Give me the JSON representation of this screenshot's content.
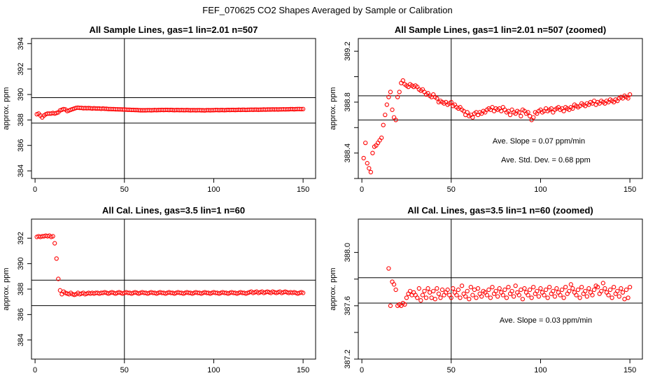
{
  "figure_title": "FEF_070625  CO2 Shapes Averaged by Sample or Calibration",
  "colors": {
    "points": "#ff0000",
    "lines": "#000000",
    "frame": "#000000"
  },
  "chart_data": [
    {
      "type": "scatter",
      "title": "All Sample Lines, gas=1 lin=2.01 n=507",
      "xlabel": "",
      "ylabel": "approx. ppm",
      "xlim": [
        -2,
        157
      ],
      "ylim": [
        387.9,
        389.45
      ],
      "xticks": [
        0,
        50,
        100,
        150
      ],
      "yticks": [
        388.4,
        388.8,
        389.2
      ],
      "ytick_labels": [
        "384",
        "388",
        "392"
      ],
      "ytick_values": [
        384,
        388,
        392,
        394,
        390,
        386
      ],
      "ytick_labels_all": [
        "384",
        "386",
        "388",
        "390",
        "392",
        "394"
      ],
      "yticks_all": [
        384,
        386,
        388,
        390,
        392,
        394
      ],
      "ylim_units": [
        383.4,
        394.4
      ],
      "vline": 50,
      "hlines": [
        387.75,
        389.75
      ],
      "annotations": [],
      "x_start": 1,
      "x_step": 1,
      "y": [
        388.45,
        388.5,
        388.35,
        388.2,
        388.35,
        388.45,
        388.5,
        388.5,
        388.5,
        388.55,
        388.5,
        388.55,
        388.6,
        388.75,
        388.8,
        388.85,
        388.82,
        388.7,
        388.75,
        388.8,
        388.85,
        388.9,
        388.95,
        388.97,
        388.95,
        388.95,
        388.92,
        388.93,
        388.92,
        388.93,
        388.92,
        388.9,
        388.92,
        388.9,
        388.9,
        388.9,
        388.88,
        388.9,
        388.88,
        388.88,
        388.86,
        388.86,
        388.85,
        388.85,
        388.84,
        388.84,
        388.83,
        388.83,
        388.82,
        388.82,
        388.81,
        388.8,
        388.8,
        388.79,
        388.79,
        388.78,
        388.78,
        388.77,
        388.76,
        388.76,
        388.76,
        388.76,
        388.77,
        388.77,
        388.76,
        388.77,
        388.78,
        388.77,
        388.78,
        388.78,
        388.79,
        388.78,
        388.79,
        388.79,
        388.78,
        388.79,
        388.78,
        388.77,
        388.78,
        388.78,
        388.77,
        388.78,
        388.77,
        388.77,
        388.78,
        388.77,
        388.76,
        388.77,
        388.77,
        388.76,
        388.77,
        388.77,
        388.76,
        388.76,
        388.75,
        388.77,
        388.77,
        388.76,
        388.77,
        388.77,
        388.78,
        388.78,
        388.77,
        388.78,
        388.78,
        388.77,
        388.78,
        388.79,
        388.78,
        388.79,
        388.79,
        388.78,
        388.79,
        388.8,
        388.79,
        388.8,
        388.8,
        388.79,
        388.8,
        388.8,
        388.81,
        388.8,
        388.81,
        388.81,
        388.8,
        388.81,
        388.81,
        388.82,
        388.81,
        388.82,
        388.82,
        388.82,
        388.83,
        388.82,
        388.83,
        388.82,
        388.83,
        388.83,
        388.84,
        388.83,
        388.84,
        388.84,
        388.85,
        388.85,
        388.84,
        388.85,
        388.86,
        388.86,
        388.85,
        388.86
      ]
    },
    {
      "type": "scatter",
      "title": "All Sample Lines, gas=1 lin=2.01 n=507 (zoomed)",
      "xlabel": "",
      "ylabel": "approx. ppm",
      "xlim": [
        -2,
        157
      ],
      "ylim": [
        388.2,
        389.3
      ],
      "xticks": [
        0,
        50,
        100,
        150
      ],
      "yticks_all": [
        388.2,
        388.4,
        388.6,
        388.8,
        389.0,
        389.2
      ],
      "ytick_labels_all": [
        "",
        "388.4",
        "",
        "388.8",
        "",
        "389.2"
      ],
      "vline": 50,
      "hlines": [
        388.66,
        388.85
      ],
      "annotations": [
        "Ave. Slope =  0.07  ppm/min",
        "Ave. Std. Dev. =  0.68  ppm"
      ],
      "x_start": 1,
      "x_step": 1,
      "y": [
        388.36,
        388.48,
        388.32,
        388.28,
        388.25,
        388.4,
        388.45,
        388.46,
        388.48,
        388.5,
        388.52,
        388.62,
        388.7,
        388.78,
        388.84,
        388.88,
        388.74,
        388.68,
        388.66,
        388.84,
        388.88,
        388.95,
        388.97,
        388.94,
        388.93,
        388.92,
        388.94,
        388.93,
        388.92,
        388.93,
        388.92,
        388.9,
        388.89,
        388.9,
        388.88,
        388.86,
        388.87,
        388.85,
        388.84,
        388.86,
        388.84,
        388.83,
        388.8,
        388.81,
        388.8,
        388.79,
        388.8,
        388.78,
        388.79,
        388.8,
        388.77,
        388.78,
        388.76,
        388.75,
        388.76,
        388.74,
        388.73,
        388.7,
        388.72,
        388.69,
        388.7,
        388.68,
        388.71,
        388.72,
        388.7,
        388.72,
        388.71,
        388.73,
        388.72,
        388.74,
        388.75,
        388.74,
        388.76,
        388.73,
        388.75,
        388.74,
        388.75,
        388.73,
        388.76,
        388.74,
        388.72,
        388.73,
        388.7,
        388.74,
        388.72,
        388.71,
        388.73,
        388.72,
        388.69,
        388.74,
        388.73,
        388.71,
        388.72,
        388.69,
        388.66,
        388.68,
        388.72,
        388.71,
        388.73,
        388.74,
        388.72,
        388.73,
        388.75,
        388.73,
        388.74,
        388.75,
        388.72,
        388.74,
        388.75,
        388.76,
        388.74,
        388.75,
        388.73,
        388.76,
        388.75,
        388.74,
        388.76,
        388.75,
        388.78,
        388.77,
        388.76,
        388.77,
        388.79,
        388.78,
        388.77,
        388.79,
        388.78,
        388.8,
        388.79,
        388.81,
        388.78,
        388.8,
        388.79,
        388.81,
        388.8,
        388.79,
        388.81,
        388.8,
        388.82,
        388.81,
        388.8,
        388.82,
        388.81,
        388.83,
        388.84,
        388.83,
        388.85,
        388.84,
        388.83,
        388.86
      ]
    },
    {
      "type": "scatter",
      "title": "All Cal. Lines, gas=3.5 lin=1 n=60",
      "xlabel": "",
      "ylabel": "approx. ppm",
      "xlim": [
        -2,
        157
      ],
      "ylim_units": [
        382.5,
        393.5
      ],
      "xticks": [
        0,
        50,
        100,
        150
      ],
      "yticks_all": [
        384,
        386,
        388,
        390,
        392
      ],
      "ytick_labels_all": [
        "384",
        "386",
        "388",
        "390",
        "392"
      ],
      "vline": 50,
      "hlines": [
        386.7,
        388.7
      ],
      "annotations": [],
      "x_start": 1,
      "x_step": 1,
      "y": [
        392.1,
        392.15,
        392.1,
        392.15,
        392.15,
        392.2,
        392.15,
        392.2,
        392.1,
        392.15,
        391.6,
        390.4,
        388.8,
        387.9,
        387.6,
        387.8,
        387.7,
        387.65,
        387.6,
        387.7,
        387.6,
        387.55,
        387.6,
        387.7,
        387.6,
        387.65,
        387.7,
        387.6,
        387.65,
        387.7,
        387.65,
        387.7,
        387.65,
        387.7,
        387.7,
        387.65,
        387.7,
        387.7,
        387.75,
        387.7,
        387.65,
        387.7,
        387.75,
        387.7,
        387.65,
        387.7,
        387.75,
        387.7,
        387.65,
        387.7,
        387.75,
        387.7,
        387.7,
        387.65,
        387.7,
        387.75,
        387.7,
        387.65,
        387.7,
        387.75,
        387.7,
        387.7,
        387.65,
        387.7,
        387.75,
        387.7,
        387.7,
        387.65,
        387.7,
        387.75,
        387.7,
        387.7,
        387.65,
        387.7,
        387.75,
        387.7,
        387.7,
        387.65,
        387.7,
        387.75,
        387.7,
        387.7,
        387.65,
        387.7,
        387.75,
        387.7,
        387.7,
        387.65,
        387.7,
        387.75,
        387.7,
        387.7,
        387.65,
        387.7,
        387.75,
        387.7,
        387.7,
        387.65,
        387.7,
        387.75,
        387.7,
        387.7,
        387.65,
        387.7,
        387.75,
        387.7,
        387.7,
        387.65,
        387.7,
        387.75,
        387.7,
        387.7,
        387.65,
        387.7,
        387.75,
        387.7,
        387.7,
        387.65,
        387.7,
        387.75,
        387.8,
        387.7,
        387.75,
        387.8,
        387.7,
        387.75,
        387.8,
        387.7,
        387.75,
        387.8,
        387.75,
        387.7,
        387.8,
        387.75,
        387.7,
        387.75,
        387.8,
        387.7,
        387.75,
        387.8,
        387.75,
        387.7,
        387.75,
        387.7,
        387.75,
        387.7,
        387.65,
        387.7,
        387.75,
        387.7
      ]
    },
    {
      "type": "scatter",
      "title": "All Cal. Lines, gas=3.5 lin=1 n=60 (zoomed)",
      "xlabel": "",
      "ylabel": "approx. ppm",
      "xlim": [
        -2,
        157
      ],
      "ylim": [
        387.2,
        388.25
      ],
      "xticks": [
        0,
        50,
        100,
        150
      ],
      "yticks_all": [
        387.2,
        387.4,
        387.6,
        387.8,
        388.0
      ],
      "ytick_labels_all": [
        "387.2",
        "",
        "387.6",
        "",
        "388.0"
      ],
      "vline": 50,
      "hlines": [
        387.62,
        387.81
      ],
      "annotations": [
        "Ave. Slope =  0.03  ppm/min"
      ],
      "x_start": 15,
      "x_step": 1,
      "y": [
        387.88,
        387.6,
        387.78,
        387.76,
        387.72,
        387.6,
        387.61,
        387.6,
        387.62,
        387.61,
        387.66,
        387.69,
        387.71,
        387.68,
        387.7,
        387.68,
        387.66,
        387.73,
        387.64,
        387.68,
        387.71,
        387.66,
        387.73,
        387.7,
        387.66,
        387.71,
        387.65,
        387.73,
        387.69,
        387.66,
        387.72,
        387.68,
        387.7,
        387.72,
        387.68,
        387.66,
        387.73,
        387.7,
        387.68,
        387.72,
        387.66,
        387.75,
        387.69,
        387.67,
        387.71,
        387.65,
        387.74,
        387.68,
        387.72,
        387.66,
        387.73,
        387.69,
        387.67,
        387.71,
        387.7,
        387.68,
        387.72,
        387.66,
        387.74,
        387.69,
        387.71,
        387.67,
        387.73,
        387.7,
        387.68,
        387.72,
        387.66,
        387.74,
        387.69,
        387.71,
        387.67,
        387.75,
        387.7,
        387.68,
        387.72,
        387.65,
        387.73,
        387.7,
        387.68,
        387.72,
        387.66,
        387.74,
        387.69,
        387.71,
        387.67,
        387.73,
        387.7,
        387.68,
        387.72,
        387.66,
        387.74,
        387.69,
        387.71,
        387.67,
        387.73,
        387.7,
        387.68,
        387.72,
        387.66,
        387.74,
        387.69,
        387.71,
        387.76,
        387.73,
        387.7,
        387.68,
        387.72,
        387.66,
        387.74,
        387.69,
        387.71,
        387.67,
        387.73,
        387.7,
        387.68,
        387.72,
        387.75,
        387.74,
        387.69,
        387.71,
        387.77,
        387.73,
        387.7,
        387.68,
        387.72,
        387.66,
        387.74,
        387.69,
        387.71,
        387.67,
        387.73,
        387.7,
        387.65,
        387.72,
        387.66,
        387.74,
        387.69
      ]
    }
  ]
}
